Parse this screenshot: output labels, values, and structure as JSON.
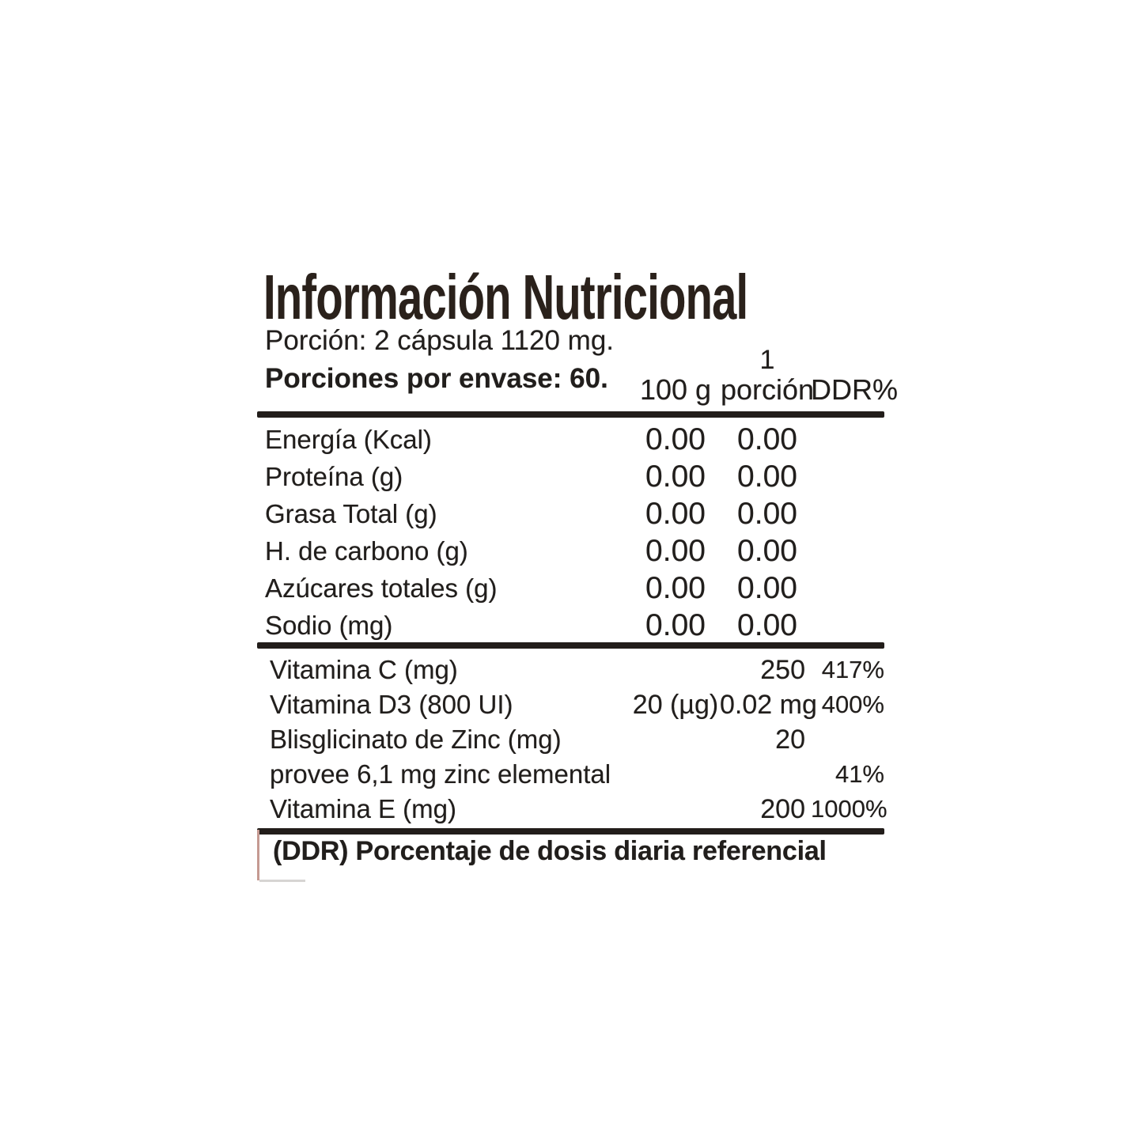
{
  "title": "Información Nutricional",
  "serving": {
    "portion_line": "Porción: 2 cápsula 1120 mg.",
    "per_container_line": "Porciones por envase: 60."
  },
  "column_headers": {
    "per_100g": "100 g",
    "per_serving_qty": "1",
    "per_serving": "porción",
    "ddr_percent": "DDR%"
  },
  "main_rows": [
    {
      "label": "Energía (Kcal)",
      "per100": "0.00",
      "per_serving": "0.00",
      "ddr": ""
    },
    {
      "label": "Proteína (g)",
      "per100": "0.00",
      "per_serving": "0.00",
      "ddr": ""
    },
    {
      "label": "Grasa Total (g)",
      "per100": "0.00",
      "per_serving": "0.00",
      "ddr": ""
    },
    {
      "label": "H. de carbono (g)",
      "per100": "0.00",
      "per_serving": "0.00",
      "ddr": ""
    },
    {
      "label": "Azúcares totales (g)",
      "per100": "0.00",
      "per_serving": "0.00",
      "ddr": ""
    },
    {
      "label": "Sodio (mg)",
      "per100": "0.00",
      "per_serving": "0.00",
      "ddr": ""
    }
  ],
  "micronutrient_rows": [
    {
      "label": "Vitamina C (mg)",
      "per100": "",
      "per_serving": "250",
      "ddr": "417%"
    },
    {
      "label": "Vitamina D3 (800 UI)",
      "per100": "20 (µg)",
      "per_serving": "0.02 mg",
      "ddr": "400%"
    },
    {
      "label": "Blisglicinato de Zinc (mg)",
      "per100": "",
      "per_serving": "20",
      "ddr": ""
    },
    {
      "label": "provee 6,1 mg zinc elemental",
      "per100": "",
      "per_serving": "",
      "ddr": "41%"
    },
    {
      "label": "Vitamina E (mg)",
      "per100": "",
      "per_serving": "200",
      "ddr": "1000%"
    }
  ],
  "footnote": "(DDR) Porcentaje de dosis diaria referencial",
  "colors": {
    "ink": "#211e1c",
    "title_ink": "#2a211b",
    "rule": "#221d1a",
    "background": "#ffffff",
    "footnote_border": "#c59a92"
  }
}
